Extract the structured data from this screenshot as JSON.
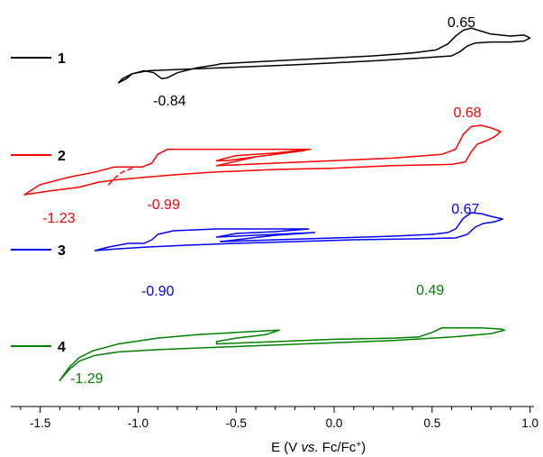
{
  "chart_data": {
    "type": "line",
    "xlabel_parts": {
      "pre": "E (V ",
      "italic": "vs.",
      "mid": " Fc/Fc",
      "sup": "+",
      "post": ")"
    },
    "xlim": [
      -1.65,
      1.02
    ],
    "x_ticks": [
      -1.5,
      -1.0,
      -0.5,
      0.0,
      0.5,
      1.0
    ],
    "x_tick_labels": [
      "-1.5",
      "-1.0",
      "-0.5",
      "0.0",
      "0.5",
      "1.0"
    ],
    "y_axis_shown": false,
    "grid": false,
    "legend_position": "left",
    "series": [
      {
        "name": "1",
        "color": "#000000",
        "annotations": [
          {
            "text": "0.65",
            "x": 0.65
          },
          {
            "text": "-0.84",
            "x": -0.84
          }
        ],
        "forward": [
          [
            -0.58,
            0.52
          ],
          [
            -0.4,
            0.54
          ],
          [
            -0.2,
            0.56
          ],
          [
            0.0,
            0.58
          ],
          [
            0.2,
            0.6
          ],
          [
            0.4,
            0.63
          ],
          [
            0.52,
            0.66
          ],
          [
            0.58,
            0.72
          ],
          [
            0.62,
            0.8
          ],
          [
            0.66,
            0.86
          ],
          [
            0.7,
            0.88
          ],
          [
            0.75,
            0.85
          ],
          [
            0.8,
            0.82
          ],
          [
            0.9,
            0.8
          ],
          [
            0.97,
            0.81
          ],
          [
            1.0,
            0.78
          ],
          [
            0.97,
            0.75
          ],
          [
            0.9,
            0.74
          ],
          [
            0.8,
            0.74
          ],
          [
            0.72,
            0.73
          ],
          [
            0.68,
            0.7
          ],
          [
            0.64,
            0.64
          ],
          [
            0.6,
            0.6
          ],
          [
            0.45,
            0.58
          ],
          [
            0.2,
            0.55
          ],
          [
            0.0,
            0.53
          ],
          [
            -0.2,
            0.51
          ],
          [
            -0.45,
            0.49
          ],
          [
            -0.7,
            0.47
          ],
          [
            -0.95,
            0.45
          ],
          [
            -1.03,
            0.42
          ],
          [
            -1.06,
            0.37
          ],
          [
            -1.1,
            0.33
          ]
        ],
        "reverse": [
          [
            -1.1,
            0.33
          ],
          [
            -1.08,
            0.37
          ],
          [
            -1.03,
            0.42
          ],
          [
            -0.97,
            0.45
          ],
          [
            -0.92,
            0.43
          ],
          [
            -0.88,
            0.37
          ],
          [
            -0.85,
            0.38
          ],
          [
            -0.8,
            0.43
          ],
          [
            -0.7,
            0.48
          ],
          [
            -0.6,
            0.51
          ],
          [
            -0.58,
            0.52
          ]
        ]
      },
      {
        "name": "2",
        "color": "#ff0000",
        "annotations": [
          {
            "text": "0.68",
            "x": 0.68
          },
          {
            "text": "-1.23",
            "x": -1.23
          },
          {
            "text": "-0.99",
            "x": -0.99
          }
        ],
        "forward": [
          [
            -0.6,
            0.53
          ],
          [
            -0.3,
            0.55
          ],
          [
            0.0,
            0.57
          ],
          [
            0.3,
            0.59
          ],
          [
            0.55,
            0.62
          ],
          [
            0.62,
            0.66
          ],
          [
            0.66,
            0.78
          ],
          [
            0.7,
            0.84
          ],
          [
            0.75,
            0.85
          ],
          [
            0.8,
            0.83
          ],
          [
            0.85,
            0.8
          ],
          [
            0.82,
            0.76
          ],
          [
            0.78,
            0.73
          ],
          [
            0.73,
            0.7
          ],
          [
            0.7,
            0.64
          ],
          [
            0.67,
            0.56
          ],
          [
            0.6,
            0.54
          ],
          [
            0.3,
            0.53
          ],
          [
            0.0,
            0.51
          ],
          [
            -0.3,
            0.5
          ],
          [
            -0.6,
            0.48
          ],
          [
            -0.8,
            0.46
          ],
          [
            -0.95,
            0.44
          ],
          [
            -1.1,
            0.42
          ],
          [
            -1.2,
            0.4
          ],
          [
            -1.3,
            0.36
          ],
          [
            -1.45,
            0.33
          ],
          [
            -1.58,
            0.3
          ]
        ],
        "reverse": [
          [
            -1.58,
            0.3
          ],
          [
            -1.5,
            0.38
          ],
          [
            -1.35,
            0.44
          ],
          [
            -1.22,
            0.48
          ],
          [
            -1.12,
            0.52
          ],
          [
            -0.98,
            0.52
          ],
          [
            -0.93,
            0.55
          ],
          [
            -0.9,
            0.62
          ],
          [
            -0.85,
            0.66
          ],
          [
            -0.7,
            0.66
          ],
          [
            -0.5,
            0.66
          ],
          [
            -0.3,
            0.66
          ],
          [
            -0.12,
            0.66
          ],
          [
            -0.3,
            0.63
          ],
          [
            -0.5,
            0.61
          ],
          [
            -0.6,
            0.57
          ],
          [
            -0.55,
            0.57
          ],
          [
            -0.4,
            0.6
          ],
          [
            -0.15,
            0.65
          ],
          [
            -0.4,
            0.6
          ],
          [
            -0.6,
            0.53
          ]
        ],
        "dashed": [
          [
            -1.15,
            0.38
          ],
          [
            -1.12,
            0.43
          ],
          [
            -1.08,
            0.48
          ],
          [
            -1.03,
            0.51
          ]
        ]
      },
      {
        "name": "3",
        "color": "#0000ff",
        "annotations": [
          {
            "text": "0.67",
            "x": 0.67
          },
          {
            "text": "-0.90",
            "x": -0.9
          }
        ],
        "forward": [
          [
            -0.58,
            0.5
          ],
          [
            -0.3,
            0.52
          ],
          [
            0.0,
            0.54
          ],
          [
            0.3,
            0.56
          ],
          [
            0.5,
            0.58
          ],
          [
            0.58,
            0.6
          ],
          [
            0.62,
            0.64
          ],
          [
            0.66,
            0.76
          ],
          [
            0.7,
            0.82
          ],
          [
            0.75,
            0.81
          ],
          [
            0.8,
            0.78
          ],
          [
            0.86,
            0.75
          ],
          [
            0.82,
            0.72
          ],
          [
            0.76,
            0.7
          ],
          [
            0.72,
            0.66
          ],
          [
            0.68,
            0.58
          ],
          [
            0.62,
            0.54
          ],
          [
            0.4,
            0.53
          ],
          [
            0.1,
            0.52
          ],
          [
            -0.2,
            0.5
          ],
          [
            -0.5,
            0.48
          ],
          [
            -0.75,
            0.46
          ],
          [
            -0.95,
            0.44
          ],
          [
            -1.1,
            0.42
          ],
          [
            -1.22,
            0.4
          ]
        ],
        "reverse": [
          [
            -1.22,
            0.4
          ],
          [
            -1.15,
            0.44
          ],
          [
            -1.05,
            0.48
          ],
          [
            -0.97,
            0.48
          ],
          [
            -0.93,
            0.52
          ],
          [
            -0.9,
            0.58
          ],
          [
            -0.82,
            0.62
          ],
          [
            -0.6,
            0.64
          ],
          [
            -0.4,
            0.64
          ],
          [
            -0.13,
            0.64
          ],
          [
            -0.3,
            0.61
          ],
          [
            -0.5,
            0.59
          ],
          [
            -0.6,
            0.55
          ],
          [
            -0.5,
            0.56
          ],
          [
            -0.3,
            0.58
          ],
          [
            -0.1,
            0.6
          ],
          [
            -0.3,
            0.57
          ],
          [
            -0.58,
            0.5
          ]
        ]
      },
      {
        "name": "4",
        "color": "#008000",
        "annotations": [
          {
            "text": "0.49",
            "x": 0.49
          },
          {
            "text": "-1.29",
            "x": -1.29
          }
        ],
        "forward": [
          [
            -0.6,
            0.5
          ],
          [
            -0.3,
            0.52
          ],
          [
            0.0,
            0.54
          ],
          [
            0.3,
            0.55
          ],
          [
            0.43,
            0.56
          ],
          [
            0.5,
            0.6
          ],
          [
            0.55,
            0.64
          ],
          [
            0.65,
            0.64
          ],
          [
            0.75,
            0.64
          ],
          [
            0.85,
            0.63
          ],
          [
            0.87,
            0.62
          ],
          [
            0.8,
            0.59
          ],
          [
            0.6,
            0.56
          ],
          [
            0.3,
            0.53
          ],
          [
            0.0,
            0.51
          ],
          [
            -0.3,
            0.49
          ],
          [
            -0.6,
            0.47
          ],
          [
            -0.9,
            0.45
          ],
          [
            -1.1,
            0.43
          ],
          [
            -1.22,
            0.4
          ],
          [
            -1.3,
            0.35
          ],
          [
            -1.35,
            0.28
          ],
          [
            -1.4,
            0.18
          ]
        ],
        "reverse": [
          [
            -1.4,
            0.18
          ],
          [
            -1.35,
            0.3
          ],
          [
            -1.3,
            0.38
          ],
          [
            -1.23,
            0.44
          ],
          [
            -1.1,
            0.5
          ],
          [
            -0.9,
            0.55
          ],
          [
            -0.7,
            0.58
          ],
          [
            -0.5,
            0.6
          ],
          [
            -0.28,
            0.62
          ],
          [
            -0.35,
            0.58
          ],
          [
            -0.5,
            0.55
          ],
          [
            -0.6,
            0.52
          ],
          [
            -0.6,
            0.5
          ]
        ]
      }
    ]
  }
}
